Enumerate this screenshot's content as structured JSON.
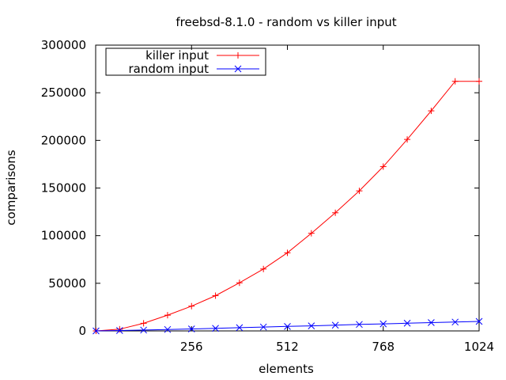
{
  "chart_data": {
    "type": "line",
    "title": "freebsd-8.1.0 - random vs killer input",
    "xlabel": "elements",
    "ylabel": "comparisons",
    "xlim": [
      0,
      1024
    ],
    "ylim": [
      0,
      300000
    ],
    "xticks": [
      256,
      512,
      768,
      1024
    ],
    "xtick_labels": [
      "256",
      "512",
      "768",
      "1024"
    ],
    "yticks": [
      0,
      50000,
      100000,
      150000,
      200000,
      250000,
      300000
    ],
    "ytick_labels": [
      "0",
      "50000",
      "100000",
      "150000",
      "200000",
      "250000",
      "300000"
    ],
    "grid": false,
    "legend": "top-left",
    "series": [
      {
        "name": "killer input",
        "color": "#ff0000",
        "marker": "plus",
        "x": [
          1,
          64,
          128,
          192,
          256,
          320,
          384,
          448,
          512,
          576,
          640,
          704,
          768,
          832,
          896,
          960,
          1024
        ],
        "y": [
          0,
          1800,
          8000,
          16500,
          26000,
          37000,
          50500,
          65000,
          82000,
          102500,
          124000,
          147000,
          172500,
          201000,
          231000,
          262000,
          262000
        ]
      },
      {
        "name": "random input",
        "color": "#0000ff",
        "marker": "x",
        "x": [
          1,
          64,
          128,
          192,
          256,
          320,
          384,
          448,
          512,
          576,
          640,
          704,
          768,
          832,
          896,
          960,
          1024
        ],
        "y": [
          0,
          400,
          900,
          1500,
          2100,
          2700,
          3400,
          4100,
          4700,
          5300,
          6000,
          6800,
          7400,
          8100,
          8700,
          9300,
          10000
        ]
      }
    ]
  }
}
